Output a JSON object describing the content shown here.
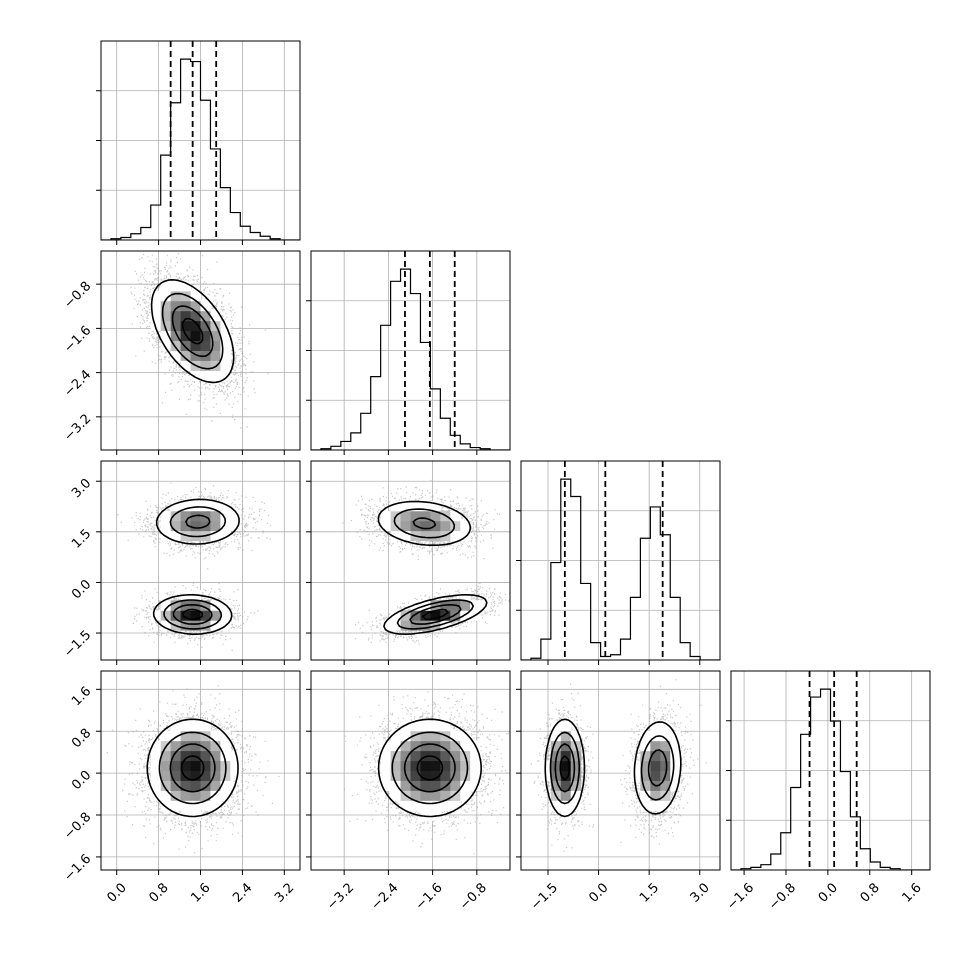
{
  "chart_data": {
    "type": "corner",
    "title": "",
    "dimensions": 4,
    "parameters": [
      {
        "index": 0,
        "range": [
          -0.3,
          3.5
        ],
        "ticks": [
          0.0,
          0.8,
          1.6,
          2.4,
          3.2
        ],
        "tick_labels": [
          "0.0",
          "0.8",
          "1.6",
          "2.4",
          "3.2"
        ],
        "quantiles": [
          1.03,
          1.45,
          1.9
        ]
      },
      {
        "index": 1,
        "range": [
          -3.8,
          -0.2
        ],
        "ticks": [
          -3.2,
          -2.4,
          -1.6,
          -0.8
        ],
        "tick_labels": [
          "−3.2",
          "−2.4",
          "−1.6",
          "−0.8"
        ],
        "quantiles": [
          -2.1,
          -1.65,
          -1.2
        ]
      },
      {
        "index": 2,
        "range": [
          -2.3,
          3.6
        ],
        "ticks": [
          -1.5,
          0.0,
          1.5,
          3.0
        ],
        "tick_labels": [
          "−1.5",
          "0.0",
          "1.5",
          "3.0"
        ],
        "quantiles": [
          -1.0,
          0.2,
          1.9
        ]
      },
      {
        "index": 3,
        "range": [
          -1.85,
          1.95
        ],
        "ticks": [
          -1.6,
          -0.8,
          0.0,
          0.8,
          1.6
        ],
        "tick_labels": [
          "−1.6",
          "−0.8",
          "0.0",
          "0.8",
          "1.6"
        ],
        "quantiles": [
          -0.35,
          0.12,
          0.55
        ]
      }
    ],
    "histograms": [
      {
        "param": 0,
        "bin_edges_range": [
          -0.3,
          3.5
        ],
        "counts": [
          0,
          1,
          2,
          5,
          10,
          28,
          68,
          110,
          145,
          143,
          112,
          73,
          42,
          22,
          11,
          6,
          3,
          1,
          0,
          0
        ]
      },
      {
        "param": 1,
        "bin_edges_range": [
          -3.8,
          -0.2
        ],
        "counts": [
          0,
          1,
          3,
          7,
          14,
          30,
          60,
          102,
          138,
          148,
          128,
          88,
          50,
          26,
          12,
          5,
          2,
          1,
          0,
          0
        ]
      },
      {
        "param": 2,
        "bin_edges_range": [
          -2.3,
          3.6
        ],
        "counts": [
          0,
          1,
          12,
          56,
          104,
          94,
          44,
          10,
          2,
          3,
          12,
          36,
          70,
          88,
          72,
          36,
          10,
          2,
          0,
          0
        ]
      },
      {
        "param": 3,
        "bin_edges_range": [
          -1.85,
          1.95
        ],
        "counts": [
          0,
          1,
          2,
          4,
          12,
          28,
          62,
          102,
          130,
          136,
          112,
          74,
          40,
          16,
          6,
          2,
          1,
          0,
          0,
          0
        ]
      }
    ],
    "joint_modes": [
      {
        "x_param": 0,
        "y_param": 1,
        "modes": [
          {
            "mean": [
              1.45,
              -1.65
            ],
            "sd": [
              0.38,
              0.45
            ],
            "rho": -0.5,
            "weight": 1.0
          }
        ]
      },
      {
        "x_param": 0,
        "y_param": 2,
        "modes": [
          {
            "mean": [
              1.55,
              1.8
            ],
            "sd": [
              0.42,
              0.35
            ],
            "rho": 0.05,
            "weight": 0.5
          },
          {
            "mean": [
              1.45,
              -0.95
            ],
            "sd": [
              0.36,
              0.28
            ],
            "rho": -0.05,
            "weight": 0.5
          }
        ]
      },
      {
        "x_param": 1,
        "y_param": 2,
        "modes": [
          {
            "mean": [
              -1.75,
              1.75
            ],
            "sd": [
              0.45,
              0.35
            ],
            "rho": -0.2,
            "weight": 0.5
          },
          {
            "mean": [
              -1.55,
              -0.95
            ],
            "sd": [
              0.45,
              0.28
            ],
            "rho": 0.6,
            "weight": 0.5
          }
        ]
      },
      {
        "x_param": 0,
        "y_param": 3,
        "modes": [
          {
            "mean": [
              1.45,
              0.1
            ],
            "sd": [
              0.42,
              0.45
            ],
            "rho": 0.0,
            "weight": 1.0
          }
        ]
      },
      {
        "x_param": 1,
        "y_param": 3,
        "modes": [
          {
            "mean": [
              -1.65,
              0.1
            ],
            "sd": [
              0.45,
              0.45
            ],
            "rho": 0.0,
            "weight": 1.0
          }
        ]
      },
      {
        "x_param": 2,
        "y_param": 3,
        "modes": [
          {
            "mean": [
              -1.0,
              0.1
            ],
            "sd": [
              0.28,
              0.45
            ],
            "rho": 0.0,
            "weight": 0.5
          },
          {
            "mean": [
              1.75,
              0.1
            ],
            "sd": [
              0.35,
              0.45
            ],
            "rho": 0.1,
            "weight": 0.5
          }
        ]
      }
    ],
    "grid": true,
    "colors": {
      "line": "#000000",
      "grid": "#b0b0b0",
      "points": "#9a9a9a",
      "background": "#ffffff"
    }
  }
}
